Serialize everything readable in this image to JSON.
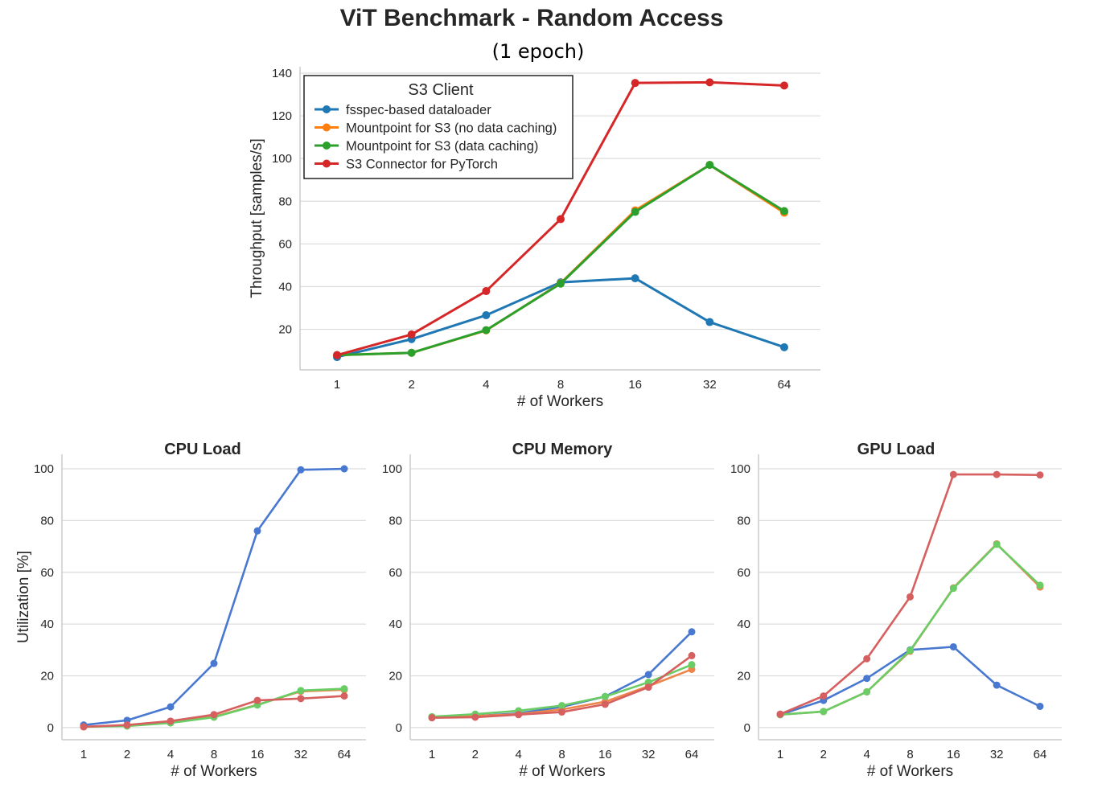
{
  "chart_data": [
    {
      "type": "line",
      "title": "ViT Benchmark - Random Access",
      "subtitle": "(1 epoch)",
      "xlabel": "# of Workers",
      "ylabel": "Throughput [samples/s]",
      "categories": [
        "1",
        "2",
        "4",
        "8",
        "16",
        "32",
        "64"
      ],
      "yticks": [
        20,
        40,
        60,
        80,
        100,
        120,
        140
      ],
      "ylim": [
        1,
        143
      ],
      "grid": "horizontal",
      "legend": {
        "title": "S3 Client",
        "placement": "top-left"
      },
      "series": [
        {
          "name": "fsspec-based dataloader",
          "color": "#1f77b4",
          "values": [
            7.0,
            15.4,
            26.6,
            42.0,
            43.9,
            23.4,
            11.6
          ]
        },
        {
          "name": "Mountpoint for S3 (no data caching)",
          "color": "#ff7f0e",
          "values": [
            7.9,
            9.0,
            19.5,
            41.6,
            75.7,
            97.0,
            74.6
          ]
        },
        {
          "name": "Mountpoint for S3 (data caching)",
          "color": "#2ca02c",
          "values": [
            7.9,
            9.0,
            19.6,
            41.4,
            75.0,
            97.0,
            75.4
          ]
        },
        {
          "name": "S3 Connector for PyTorch",
          "color": "#d62728",
          "values": [
            7.9,
            17.6,
            37.9,
            71.6,
            135.4,
            135.7,
            134.2
          ]
        }
      ]
    },
    {
      "type": "line",
      "title": "CPU Load",
      "xlabel": "# of Workers",
      "ylabel": "Utilization [%]",
      "categories": [
        "1",
        "2",
        "4",
        "8",
        "16",
        "32",
        "64"
      ],
      "yticks": [
        0,
        20,
        40,
        60,
        80,
        100
      ],
      "ylim": [
        -4.7,
        105.6
      ],
      "grid": "horizontal",
      "series": [
        {
          "color": "#4878d0",
          "values": [
            1.0,
            2.8,
            8.0,
            24.8,
            76.0,
            99.6,
            100.0
          ]
        },
        {
          "color": "#ee854a",
          "values": [
            0.3,
            0.8,
            1.9,
            4.2,
            8.8,
            14.0,
            14.6
          ]
        },
        {
          "color": "#6acc64",
          "values": [
            0.3,
            0.6,
            1.8,
            4.0,
            8.7,
            14.3,
            15.0
          ]
        },
        {
          "color": "#d65f5f",
          "values": [
            0.3,
            1.0,
            2.5,
            5.0,
            10.5,
            11.2,
            12.2
          ]
        }
      ]
    },
    {
      "type": "line",
      "title": "CPU Memory",
      "xlabel": "# of Workers",
      "categories": [
        "1",
        "2",
        "4",
        "8",
        "16",
        "32",
        "64"
      ],
      "yticks": [
        0,
        20,
        40,
        60,
        80,
        100
      ],
      "ylim": [
        -4.7,
        105.6
      ],
      "grid": "horizontal",
      "series": [
        {
          "color": "#4878d0",
          "values": [
            4.0,
            4.5,
            5.5,
            8.0,
            12.0,
            20.5,
            37.0
          ]
        },
        {
          "color": "#ee854a",
          "values": [
            4.0,
            4.5,
            5.2,
            7.0,
            10.0,
            16.0,
            22.5
          ]
        },
        {
          "color": "#6acc64",
          "values": [
            4.2,
            5.2,
            6.5,
            8.5,
            12.0,
            17.5,
            24.3
          ]
        },
        {
          "color": "#d65f5f",
          "values": [
            3.8,
            4.0,
            5.0,
            6.0,
            9.0,
            15.6,
            27.8
          ]
        }
      ]
    },
    {
      "type": "line",
      "title": "GPU Load",
      "xlabel": "# of Workers",
      "categories": [
        "1",
        "2",
        "4",
        "8",
        "16",
        "32",
        "64"
      ],
      "yticks": [
        0,
        20,
        40,
        60,
        80,
        100
      ],
      "ylim": [
        -4.7,
        105.6
      ],
      "grid": "horizontal",
      "series": [
        {
          "color": "#4878d0",
          "values": [
            5.0,
            10.5,
            19.0,
            30.0,
            31.2,
            16.4,
            8.2
          ]
        },
        {
          "color": "#ee854a",
          "values": [
            5.0,
            6.2,
            13.8,
            29.5,
            54.0,
            71.0,
            54.3
          ]
        },
        {
          "color": "#6acc64",
          "values": [
            5.0,
            6.2,
            13.8,
            29.8,
            53.8,
            70.8,
            55.0
          ]
        },
        {
          "color": "#d65f5f",
          "values": [
            5.2,
            12.2,
            26.6,
            50.5,
            97.8,
            97.8,
            97.6
          ]
        }
      ]
    }
  ]
}
